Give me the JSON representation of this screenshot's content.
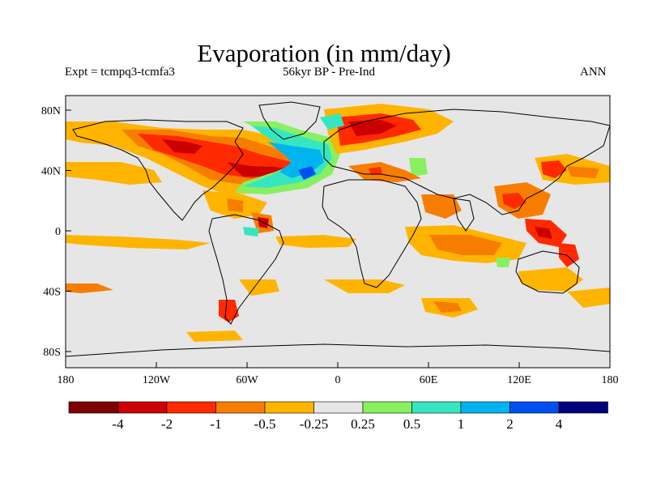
{
  "title": "Evaporation (in mm/day)",
  "subtitle_left": "Expt = tcmpq3-tcmfa3",
  "subtitle_center": "56kyr BP - Pre-Ind",
  "subtitle_right": "ANN",
  "map": {
    "variable": "Evaporation anomaly",
    "units": "mm/day",
    "projection": "equirectangular",
    "lon_range": [
      -180,
      180
    ],
    "lat_range": [
      -90,
      90
    ],
    "lat_ticks": [
      "80N",
      "40N",
      "0",
      "40S",
      "80S"
    ],
    "lon_ticks": [
      "180",
      "120W",
      "60W",
      "0",
      "60E",
      "120E",
      "180"
    ],
    "background_color": "#e6e6e6"
  },
  "colorbar": {
    "labels": [
      "-4",
      "-2",
      "-1",
      "-0.5",
      "-0.25",
      "0.25",
      "0.5",
      "1",
      "2",
      "4"
    ],
    "colors": [
      "#7f0000",
      "#cc0000",
      "#ff2a00",
      "#f77d00",
      "#ffb400",
      "#e6e6e6",
      "#88f060",
      "#36e6c0",
      "#00b4f0",
      "#0050f0",
      "#00007f"
    ]
  },
  "colors": {
    "background": "#ffffff",
    "land_outline": "#000000",
    "no_change": "#e6e6e6"
  }
}
